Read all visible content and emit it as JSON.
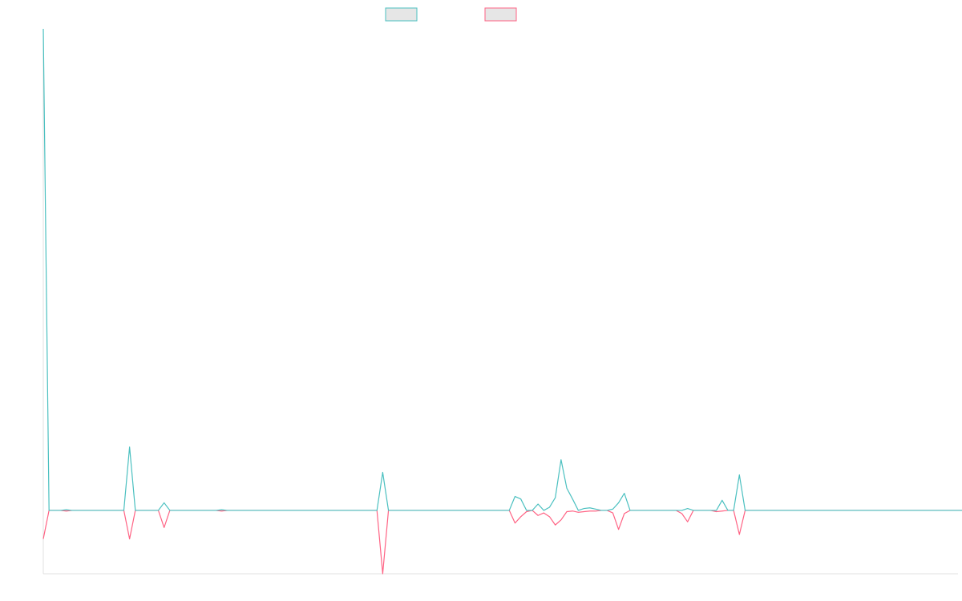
{
  "chart_data": {
    "type": "line",
    "title": "",
    "xlabel": "",
    "ylabel": "",
    "grid": false,
    "legend_position": "top-center",
    "x_count": 160,
    "ylim": [
      -100,
      760
    ],
    "series": [
      {
        "color": "#4bc0c0",
        "legend_fill": "#e6e6e6",
        "values": [
          760,
          0,
          0,
          0,
          1,
          0,
          0,
          0,
          0,
          0,
          0,
          0,
          0,
          0,
          0,
          100,
          0,
          0,
          0,
          0,
          0,
          12,
          0,
          0,
          0,
          0,
          0,
          0,
          0,
          0,
          0,
          1,
          0,
          0,
          0,
          0,
          0,
          0,
          0,
          0,
          0,
          0,
          0,
          0,
          0,
          0,
          0,
          0,
          0,
          0,
          0,
          0,
          0,
          0,
          0,
          0,
          0,
          0,
          0,
          60,
          0,
          0,
          0,
          0,
          0,
          0,
          0,
          0,
          0,
          0,
          0,
          0,
          0,
          0,
          0,
          0,
          0,
          0,
          0,
          0,
          0,
          0,
          22,
          18,
          0,
          0,
          10,
          0,
          5,
          20,
          80,
          35,
          18,
          0,
          3,
          4,
          2,
          0,
          0,
          2,
          12,
          27,
          0,
          0,
          0,
          0,
          0,
          0,
          0,
          0,
          0,
          0,
          3,
          0,
          0,
          0,
          0,
          0,
          16,
          0,
          0,
          56,
          0,
          0,
          0,
          0,
          0,
          0,
          0,
          0,
          0,
          0,
          0,
          0,
          0,
          0,
          0,
          0,
          0,
          0,
          0,
          0,
          0,
          0,
          0,
          0,
          0,
          0,
          0,
          0,
          0,
          0,
          0,
          0,
          0,
          0,
          0,
          0,
          0,
          0,
          0,
          0
        ]
      },
      {
        "color": "#ff6384",
        "legend_fill": "#e6e6e6",
        "values": [
          -45,
          0,
          0,
          0,
          -1,
          0,
          0,
          0,
          0,
          0,
          0,
          0,
          0,
          0,
          0,
          -45,
          0,
          0,
          0,
          0,
          0,
          -27,
          0,
          0,
          0,
          0,
          0,
          0,
          0,
          0,
          0,
          -1,
          0,
          0,
          0,
          0,
          0,
          0,
          0,
          0,
          0,
          0,
          0,
          0,
          0,
          0,
          0,
          0,
          0,
          0,
          0,
          0,
          0,
          0,
          0,
          0,
          0,
          0,
          0,
          -100,
          0,
          0,
          0,
          0,
          0,
          0,
          0,
          0,
          0,
          0,
          0,
          0,
          0,
          0,
          0,
          0,
          0,
          0,
          0,
          0,
          0,
          0,
          -20,
          -10,
          -2,
          0,
          -8,
          -4,
          -10,
          -23,
          -15,
          -2,
          -1,
          -3,
          -2,
          -1,
          -1,
          0,
          0,
          -4,
          -30,
          -5,
          0,
          0,
          0,
          0,
          0,
          0,
          0,
          0,
          0,
          -5,
          -18,
          0,
          0,
          0,
          0,
          -2,
          -1,
          0,
          0,
          -38,
          0,
          0,
          0,
          0,
          0,
          0,
          0,
          0,
          0,
          0,
          0,
          0,
          0,
          0,
          0,
          0,
          0,
          0,
          0,
          0,
          0,
          0,
          0,
          0,
          0,
          0,
          0,
          0,
          0,
          0,
          0,
          0,
          0,
          0,
          0,
          0,
          0,
          0,
          0,
          0
        ]
      }
    ]
  }
}
